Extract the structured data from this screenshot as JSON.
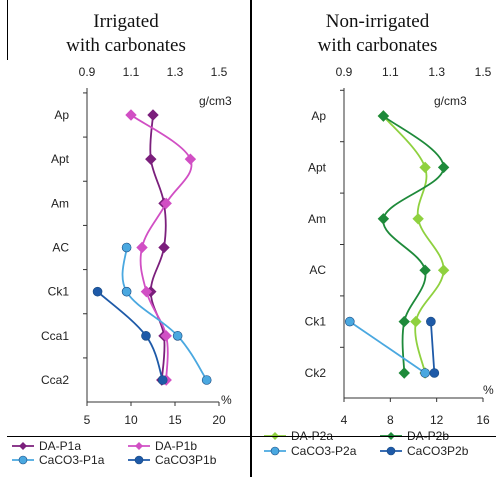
{
  "panels": [
    {
      "title_line1": "Irrigated",
      "title_line2": "with carbonates"
    },
    {
      "title_line1": "Non-irrigated",
      "title_line2": "with carbonates"
    }
  ],
  "chart_data": [
    {
      "type": "line",
      "top_axis": {
        "label": "g/cm3",
        "range": [
          0.9,
          1.5
        ],
        "ticks": [
          "0.9",
          "1.1",
          "1.3",
          "1.5"
        ]
      },
      "bottom_axis": {
        "label": "%",
        "range": [
          5,
          20
        ],
        "ticks": [
          "5",
          "10",
          "15",
          "20"
        ]
      },
      "categories": [
        "Ap",
        "Apt",
        "Am",
        "AC",
        "Ck1",
        "Cca1",
        "Cca2"
      ],
      "series": [
        {
          "name": "DA-P1a",
          "axis": "top",
          "color": "#7b1f7c",
          "marker": "diamond",
          "points": [
            [
              1.2,
              "Ap"
            ],
            [
              1.19,
              "Apt"
            ],
            [
              1.25,
              "Am"
            ],
            [
              1.25,
              "AC"
            ],
            [
              1.19,
              "Ck1"
            ],
            [
              1.25,
              "Cca1"
            ],
            [
              1.24,
              "Cca2"
            ]
          ]
        },
        {
          "name": "DA-P1b",
          "axis": "top",
          "color": "#d14fc4",
          "marker": "diamond",
          "points": [
            [
              1.1,
              "Ap"
            ],
            [
              1.37,
              "Apt"
            ],
            [
              1.26,
              "Am"
            ],
            [
              1.15,
              "AC"
            ],
            [
              1.17,
              "Ck1"
            ],
            [
              1.26,
              "Cca1"
            ],
            [
              1.26,
              "Cca2"
            ]
          ]
        },
        {
          "name": "CaCO3-P1a",
          "axis": "bottom",
          "color": "#4aa8e0",
          "marker": "circle",
          "points": [
            [
              9.5,
              "AC"
            ],
            [
              9.5,
              "Ck1"
            ],
            [
              15.3,
              "Cca1"
            ],
            [
              18.6,
              "Cca2"
            ]
          ]
        },
        {
          "name": "CaCO3P1b",
          "axis": "bottom",
          "color": "#1e5aa8",
          "marker": "circle",
          "points": [
            [
              6.2,
              "Ck1"
            ],
            [
              11.7,
              "Cca1"
            ],
            [
              13.6,
              "Cca2"
            ]
          ]
        }
      ]
    },
    {
      "type": "line",
      "top_axis": {
        "label": "g/cm3",
        "range": [
          0.9,
          1.5
        ],
        "ticks": [
          "0.9",
          "1.1",
          "1.3",
          "1.5"
        ]
      },
      "bottom_axis": {
        "label": "%",
        "range": [
          4,
          16
        ],
        "ticks": [
          "4",
          "8",
          "12",
          "16"
        ]
      },
      "categories": [
        "Ap",
        "Apt",
        "Am",
        "AC",
        "Ck1",
        "Ck2"
      ],
      "series": [
        {
          "name": "DA-P2a",
          "axis": "top",
          "color": "#8fd13f",
          "marker": "diamond",
          "points": [
            [
              1.07,
              "Ap"
            ],
            [
              1.25,
              "Apt"
            ],
            [
              1.22,
              "Am"
            ],
            [
              1.33,
              "AC"
            ],
            [
              1.21,
              "Ck1"
            ],
            [
              1.25,
              "Ck2"
            ]
          ]
        },
        {
          "name": "DA-P2b",
          "axis": "top",
          "color": "#1e8a3a",
          "marker": "diamond",
          "points": [
            [
              1.07,
              "Ap"
            ],
            [
              1.33,
              "Apt"
            ],
            [
              1.07,
              "Am"
            ],
            [
              1.25,
              "AC"
            ],
            [
              1.16,
              "Ck1"
            ],
            [
              1.16,
              "Ck2"
            ]
          ]
        },
        {
          "name": "CaCO3-P2a",
          "axis": "bottom",
          "color": "#4aa8e0",
          "marker": "circle",
          "points": [
            [
              4.5,
              "Ck1"
            ],
            [
              11.0,
              "Ck2"
            ]
          ]
        },
        {
          "name": "CaCO3P2b",
          "axis": "bottom",
          "color": "#1e5aa8",
          "marker": "circle",
          "points": [
            [
              11.5,
              "Ck1"
            ],
            [
              11.8,
              "Ck2"
            ]
          ]
        }
      ]
    }
  ]
}
